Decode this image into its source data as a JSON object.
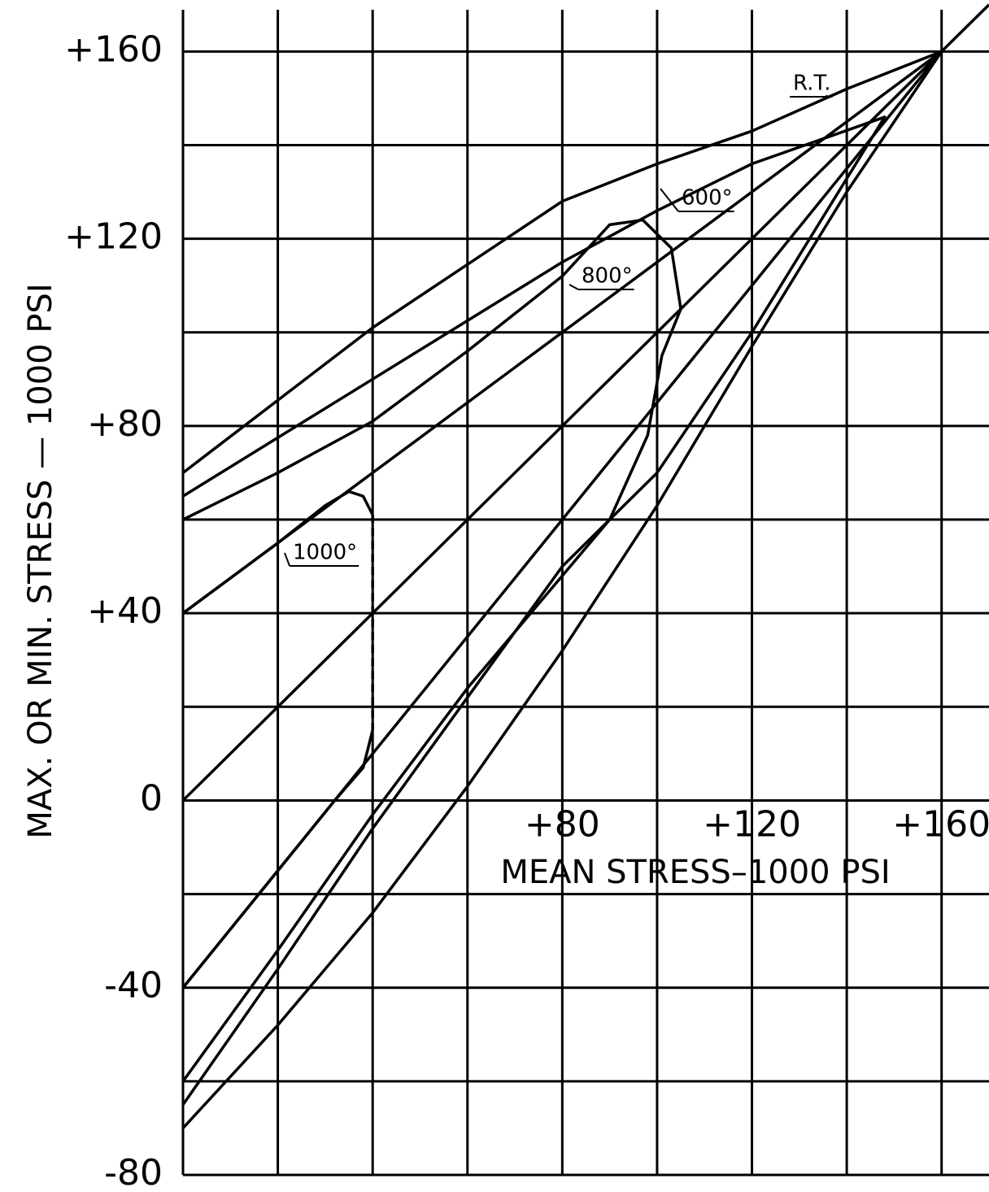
{
  "chart_data": {
    "type": "line",
    "xlabel": "MEAN STRESS–1000 PSI",
    "ylabel": "MAX. OR MIN. STRESS — 1000 PSI",
    "xlim": [
      0,
      170
    ],
    "ylim": [
      -80,
      171
    ],
    "xticks": [
      {
        "value": 80,
        "label": "+80"
      },
      {
        "value": 120,
        "label": "+120"
      },
      {
        "value": 160,
        "label": "+160"
      }
    ],
    "yticks": [
      {
        "value": 160,
        "label": "+160"
      },
      {
        "value": 120,
        "label": "+120"
      },
      {
        "value": 80,
        "label": "+80"
      },
      {
        "value": 40,
        "label": "+40"
      },
      0,
      -40,
      -80
    ],
    "xgrid": [
      0,
      20,
      40,
      60,
      80,
      100,
      120,
      140,
      160
    ],
    "ygrid": [
      160,
      140,
      120,
      100,
      80,
      60,
      40,
      20,
      0,
      -20,
      -40,
      -60,
      -80
    ],
    "color": "#000000",
    "series": [
      {
        "x": [
          0,
          170
        ],
        "values": [
          0,
          170
        ]
      },
      {
        "x": [
          0,
          160
        ],
        "values": [
          40,
          160
        ]
      },
      {
        "x": [
          0,
          160
        ],
        "values": [
          -40,
          160
        ]
      },
      {
        "name": "R.T.",
        "x": [
          0,
          40,
          80,
          100,
          120,
          140,
          160,
          140,
          120,
          100,
          80,
          60,
          40,
          20,
          0
        ],
        "values": [
          70,
          101,
          128,
          136,
          143,
          152,
          160,
          130,
          97,
          63,
          32,
          3,
          -24,
          -48,
          -70
        ]
      },
      {
        "name": "600°",
        "x": [
          0,
          40,
          80,
          100,
          120,
          148,
          120,
          100,
          80,
          60,
          40,
          20,
          0
        ],
        "values": [
          65,
          90,
          115,
          126,
          136,
          146,
          100,
          70,
          50,
          22,
          -6,
          -36,
          -65
        ]
      },
      {
        "name": "800°",
        "x": [
          0,
          20,
          40,
          60,
          80,
          90,
          97,
          103,
          105,
          101,
          98,
          90,
          80,
          60,
          40,
          20,
          0
        ],
        "values": [
          60,
          70,
          81,
          96,
          112,
          123,
          124,
          118,
          105,
          95,
          78,
          60,
          48,
          24,
          -3,
          -32,
          -60
        ]
      },
      {
        "name": "1000°",
        "x": [
          0,
          20,
          30,
          35,
          38,
          40,
          40,
          40,
          38,
          32,
          0
        ],
        "values": [
          40,
          55,
          63,
          66,
          65,
          61,
          null,
          15,
          7,
          0,
          -40
        ]
      },
      {
        "x": [
          40,
          40
        ],
        "values": [
          61,
          15
        ],
        "dashed": true
      }
    ]
  }
}
